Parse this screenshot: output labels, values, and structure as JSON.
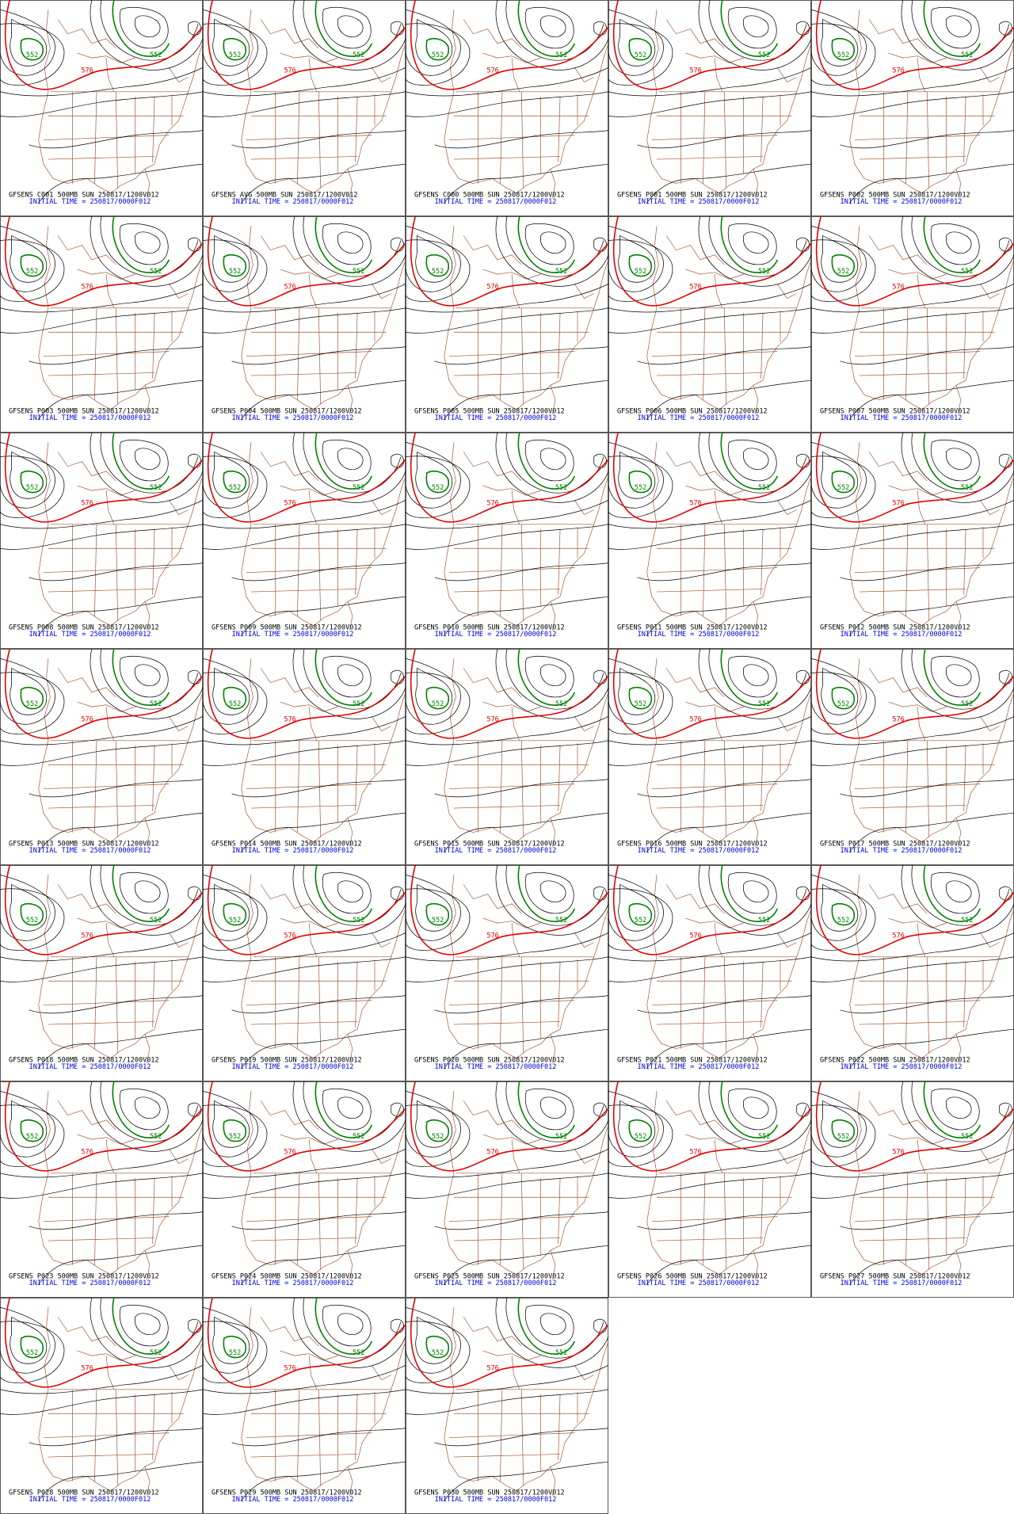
{
  "panels": [
    {
      "model_line": "GFSENS C001 500MB SUN 250817/1200V012",
      "init_line": "INITIAL TIME = 250817/0000F012",
      "contour_labels": [
        "552",
        "576",
        "552"
      ]
    },
    {
      "model_line": "GFSENS AVG 500MB SUN 250817/1200V012",
      "init_line": "INITIAL TIME = 250817/0000F012",
      "contour_labels": [
        "552",
        "576",
        "552"
      ]
    },
    {
      "model_line": "GFSENS C000 500MB SUN 250817/1200V012",
      "init_line": "INITIAL TIME = 250817/0000F012",
      "contour_labels": [
        "552",
        "576",
        "552"
      ]
    },
    {
      "model_line": "GFSENS P001 500MB SUN 250817/1200V012",
      "init_line": "INITIAL TIME = 250817/0000F012",
      "contour_labels": [
        "552",
        "576",
        "552"
      ]
    },
    {
      "model_line": "GFSENS P002 500MB SUN 250817/1200V012",
      "init_line": "INITIAL TIME = 250817/0000F012",
      "contour_labels": [
        "552",
        "576",
        "552"
      ]
    },
    {
      "model_line": "GFSENS P003 500MB SUN 250817/1200V012",
      "init_line": "INITIAL TIME = 250817/0000F012",
      "contour_labels": [
        "552",
        "576",
        "552"
      ]
    },
    {
      "model_line": "GFSENS P004 500MB SUN 250817/1200V012",
      "init_line": "INITIAL TIME = 250817/0000F012",
      "contour_labels": [
        "552",
        "576",
        "552"
      ]
    },
    {
      "model_line": "GFSENS P005 500MB SUN 250817/1200V012",
      "init_line": "INITIAL TIME = 250817/0000F012",
      "contour_labels": [
        "552",
        "576",
        "552"
      ]
    },
    {
      "model_line": "GFSENS P006 500MB SUN 250817/1200V012",
      "init_line": "INITIAL TIME = 250817/0000F012",
      "contour_labels": [
        "552",
        "576",
        "552"
      ]
    },
    {
      "model_line": "GFSENS P007 500MB SUN 250817/1200V012",
      "init_line": "INITIAL TIME = 250817/0000F012",
      "contour_labels": [
        "552",
        "576",
        "552"
      ]
    },
    {
      "model_line": "GFSENS P008 500MB SUN 250817/1200V012",
      "init_line": "INITIAL TIME = 250817/0000F012",
      "contour_labels": [
        "552",
        "576",
        "552"
      ]
    },
    {
      "model_line": "GFSENS P009 500MB SUN 250817/1200V012",
      "init_line": "INITIAL TIME = 250817/0000F012",
      "contour_labels": [
        "552",
        "576",
        "552"
      ]
    },
    {
      "model_line": "GFSENS P010 500MB SUN 250817/1200V012",
      "init_line": "INITIAL TIME = 250817/0000F012",
      "contour_labels": [
        "552",
        "576",
        "552"
      ]
    },
    {
      "model_line": "GFSENS P011 500MB SUN 250817/1200V012",
      "init_line": "INITIAL TIME = 250817/0000F012",
      "contour_labels": [
        "552",
        "576",
        "552"
      ]
    },
    {
      "model_line": "GFSENS P012 500MB SUN 250817/1200V012",
      "init_line": "INITIAL TIME = 250817/0000F012",
      "contour_labels": [
        "552",
        "576",
        "552"
      ]
    },
    {
      "model_line": "GFSENS P013 500MB SUN 250817/1200V012",
      "init_line": "INITIAL TIME = 250817/0000F012",
      "contour_labels": [
        "552",
        "576",
        "552"
      ]
    },
    {
      "model_line": "GFSENS P014 500MB SUN 250817/1200V012",
      "init_line": "INITIAL TIME = 250817/0000F012",
      "contour_labels": [
        "552",
        "576",
        "552"
      ]
    },
    {
      "model_line": "GFSENS P015 500MB SUN 250817/1200V012",
      "init_line": "INITIAL TIME = 250817/0000F012",
      "contour_labels": [
        "552",
        "576",
        "552"
      ]
    },
    {
      "model_line": "GFSENS P016 500MB SUN 250817/1200V012",
      "init_line": "INITIAL TIME = 250817/0000F012",
      "contour_labels": [
        "552",
        "576",
        "552"
      ]
    },
    {
      "model_line": "GFSENS P017 500MB SUN 250817/1200V012",
      "init_line": "INITIAL TIME = 250817/0000F012",
      "contour_labels": [
        "552",
        "576",
        "552"
      ]
    },
    {
      "model_line": "GFSENS P018 500MB SUN 250817/1200V012",
      "init_line": "INITIAL TIME = 250817/0000F012",
      "contour_labels": [
        "552",
        "576",
        "552"
      ]
    },
    {
      "model_line": "GFSENS P019 500MB SUN 250817/1200V012",
      "init_line": "INITIAL TIME = 250817/0000F012",
      "contour_labels": [
        "552",
        "576",
        "552"
      ]
    },
    {
      "model_line": "GFSENS P020 500MB SUN 250817/1200V012",
      "init_line": "INITIAL TIME = 250817/0000F012",
      "contour_labels": [
        "552",
        "576",
        "552"
      ]
    },
    {
      "model_line": "GFSENS P021 500MB SUN 250817/1200V012",
      "init_line": "INITIAL TIME = 250817/0000F012",
      "contour_labels": [
        "552",
        "576",
        "552"
      ]
    },
    {
      "model_line": "GFSENS P022 500MB SUN 250817/1200V012",
      "init_line": "INITIAL TIME = 250817/0000F012",
      "contour_labels": [
        "552",
        "576",
        "552"
      ]
    },
    {
      "model_line": "GFSENS P023 500MB SUN 250817/1200V012",
      "init_line": "INITIAL TIME = 250817/0000F012",
      "contour_labels": [
        "552",
        "576",
        "552"
      ]
    },
    {
      "model_line": "GFSENS P024 500MB SUN 250817/1200V012",
      "init_line": "INITIAL TIME = 250817/0000F012",
      "contour_labels": [
        "552",
        "576",
        "552"
      ]
    },
    {
      "model_line": "GFSENS P025 500MB SUN 250817/1200V012",
      "init_line": "INITIAL TIME = 250817/0000F012",
      "contour_labels": [
        "552",
        "576",
        "552"
      ]
    },
    {
      "model_line": "GFSENS P026 500MB SUN 250817/1200V012",
      "init_line": "INITIAL TIME = 250817/0000F012",
      "contour_labels": [
        "552",
        "576",
        "552"
      ]
    },
    {
      "model_line": "GFSENS P027 500MB SUN 250817/1200V012",
      "init_line": "INITIAL TIME = 250817/0000F012",
      "contour_labels": [
        "552",
        "576",
        "552"
      ]
    },
    {
      "model_line": "GFSENS P028 500MB SUN 250817/1200V012",
      "init_line": "INITIAL TIME = 250817/0000F012",
      "contour_labels": [
        "552",
        "576",
        "552"
      ]
    },
    {
      "model_line": "GFSENS P029 500MB SUN 250817/1200V012",
      "init_line": "INITIAL TIME = 250817/0000F012",
      "contour_labels": [
        "552",
        "576",
        "552"
      ]
    },
    {
      "model_line": "GFSENS P030 500MB SUN 250817/1200V012",
      "init_line": "INITIAL TIME = 250817/0000F012",
      "contour_labels": [
        "552",
        "576",
        "552"
      ]
    }
  ]
}
